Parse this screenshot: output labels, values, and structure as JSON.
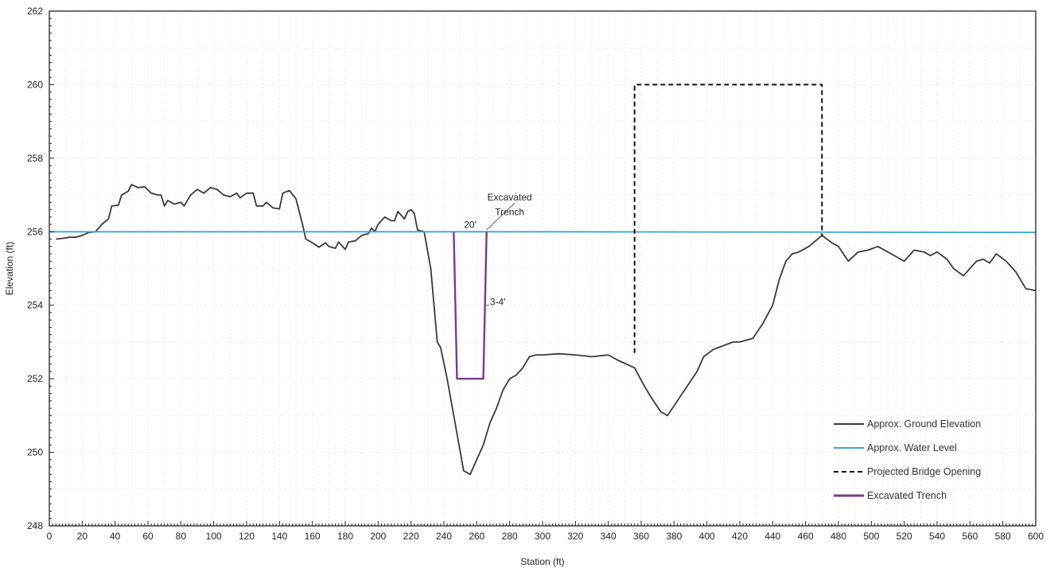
{
  "chart_data": {
    "type": "line",
    "title": "",
    "xlabel": "Station (ft)",
    "ylabel": "Elevation (ft)",
    "xlim": [
      0,
      600
    ],
    "ylim": [
      248,
      262
    ],
    "xticks": [
      0,
      20,
      40,
      60,
      80,
      100,
      120,
      140,
      160,
      180,
      200,
      220,
      240,
      260,
      280,
      300,
      320,
      340,
      360,
      380,
      400,
      420,
      440,
      460,
      480,
      500,
      520,
      540,
      560,
      580,
      600
    ],
    "yticks": [
      248,
      250,
      252,
      254,
      256,
      258,
      260,
      262
    ],
    "grid": true,
    "legend_position": "bottom-right",
    "series": [
      {
        "name": "Approx. Ground Elevation",
        "color": "#3a3a3a",
        "style": "solid",
        "points": [
          [
            4,
            255.8
          ],
          [
            8,
            255.82
          ],
          [
            12,
            255.85
          ],
          [
            16,
            255.85
          ],
          [
            20,
            255.9
          ],
          [
            24,
            255.98
          ],
          [
            28,
            256.0
          ],
          [
            32,
            256.2
          ],
          [
            36,
            256.35
          ],
          [
            38,
            256.7
          ],
          [
            42,
            256.72
          ],
          [
            44,
            257.0
          ],
          [
            48,
            257.1
          ],
          [
            50,
            257.28
          ],
          [
            54,
            257.2
          ],
          [
            58,
            257.22
          ],
          [
            62,
            257.05
          ],
          [
            66,
            257.0
          ],
          [
            68,
            257.0
          ],
          [
            70,
            256.7
          ],
          [
            72,
            256.85
          ],
          [
            76,
            256.75
          ],
          [
            80,
            256.8
          ],
          [
            82,
            256.7
          ],
          [
            86,
            257.0
          ],
          [
            90,
            257.15
          ],
          [
            94,
            257.05
          ],
          [
            98,
            257.2
          ],
          [
            102,
            257.15
          ],
          [
            106,
            257.0
          ],
          [
            110,
            256.95
          ],
          [
            114,
            257.05
          ],
          [
            116,
            256.92
          ],
          [
            120,
            257.05
          ],
          [
            124,
            257.05
          ],
          [
            126,
            256.7
          ],
          [
            130,
            256.7
          ],
          [
            132,
            256.8
          ],
          [
            136,
            256.65
          ],
          [
            140,
            256.62
          ],
          [
            142,
            257.05
          ],
          [
            146,
            257.12
          ],
          [
            150,
            256.9
          ],
          [
            154,
            256.2
          ],
          [
            156,
            255.8
          ],
          [
            160,
            255.7
          ],
          [
            164,
            255.58
          ],
          [
            168,
            255.7
          ],
          [
            170,
            255.6
          ],
          [
            174,
            255.55
          ],
          [
            176,
            255.72
          ],
          [
            180,
            255.52
          ],
          [
            182,
            255.72
          ],
          [
            186,
            255.75
          ],
          [
            190,
            255.9
          ],
          [
            194,
            255.95
          ],
          [
            196,
            256.1
          ],
          [
            198,
            256.0
          ],
          [
            200,
            256.2
          ],
          [
            204,
            256.4
          ],
          [
            208,
            256.3
          ],
          [
            210,
            256.3
          ],
          [
            212,
            256.55
          ],
          [
            216,
            256.35
          ],
          [
            218,
            256.55
          ],
          [
            220,
            256.6
          ],
          [
            222,
            256.5
          ],
          [
            224,
            256.05
          ],
          [
            228,
            256.0
          ],
          [
            232,
            255.0
          ],
          [
            236,
            253.0
          ],
          [
            238,
            252.85
          ],
          [
            242,
            252.0
          ],
          [
            246,
            251.0
          ],
          [
            250,
            250.0
          ],
          [
            252,
            249.5
          ],
          [
            256,
            249.4
          ],
          [
            260,
            249.8
          ],
          [
            264,
            250.2
          ],
          [
            268,
            250.8
          ],
          [
            272,
            251.2
          ],
          [
            276,
            251.7
          ],
          [
            280,
            252.0
          ],
          [
            284,
            252.1
          ],
          [
            288,
            252.3
          ],
          [
            292,
            252.6
          ],
          [
            296,
            252.65
          ],
          [
            300,
            252.65
          ],
          [
            310,
            252.68
          ],
          [
            320,
            252.65
          ],
          [
            330,
            252.6
          ],
          [
            340,
            252.65
          ],
          [
            346,
            252.5
          ],
          [
            356,
            252.3
          ],
          [
            362,
            251.8
          ],
          [
            366,
            251.5
          ],
          [
            372,
            251.1
          ],
          [
            376,
            251.0
          ],
          [
            382,
            251.4
          ],
          [
            388,
            251.8
          ],
          [
            394,
            252.2
          ],
          [
            398,
            252.6
          ],
          [
            404,
            252.8
          ],
          [
            410,
            252.9
          ],
          [
            416,
            253.0
          ],
          [
            420,
            253.0
          ],
          [
            428,
            253.1
          ],
          [
            434,
            253.5
          ],
          [
            440,
            254.0
          ],
          [
            444,
            254.7
          ],
          [
            448,
            255.2
          ],
          [
            452,
            255.4
          ],
          [
            456,
            255.45
          ],
          [
            462,
            255.6
          ],
          [
            470,
            255.9
          ],
          [
            476,
            255.7
          ],
          [
            480,
            255.6
          ],
          [
            486,
            255.2
          ],
          [
            492,
            255.45
          ],
          [
            498,
            255.5
          ],
          [
            504,
            255.6
          ],
          [
            510,
            255.45
          ],
          [
            516,
            255.3
          ],
          [
            520,
            255.2
          ],
          [
            526,
            255.5
          ],
          [
            532,
            255.45
          ],
          [
            536,
            255.35
          ],
          [
            540,
            255.45
          ],
          [
            546,
            255.25
          ],
          [
            550,
            255.0
          ],
          [
            556,
            254.8
          ],
          [
            560,
            255.0
          ],
          [
            564,
            255.2
          ],
          [
            568,
            255.25
          ],
          [
            572,
            255.15
          ],
          [
            576,
            255.4
          ],
          [
            582,
            255.2
          ],
          [
            588,
            254.9
          ],
          [
            594,
            254.45
          ],
          [
            600,
            254.4
          ]
        ]
      },
      {
        "name": "Approx. Water Level",
        "color": "#3aa6d6",
        "style": "solid",
        "points": [
          [
            0,
            256.0
          ],
          [
            300,
            256.0
          ],
          [
            600,
            255.98
          ]
        ]
      },
      {
        "name": "Projected Bridge Opening",
        "color": "#111111",
        "style": "dashed",
        "points": [
          [
            356,
            252.7
          ],
          [
            356,
            260.0
          ],
          [
            470,
            260.0
          ],
          [
            470,
            255.9
          ]
        ]
      },
      {
        "name": "Excavated Trench",
        "color": "#7a3a8e",
        "style": "solid",
        "points": [
          [
            246,
            256.0
          ],
          [
            248,
            252.0
          ],
          [
            264,
            252.0
          ],
          [
            266,
            256.0
          ]
        ]
      }
    ],
    "annotations": [
      {
        "text": "Excavated",
        "x": 280,
        "y": 256.85
      },
      {
        "text": "Trench",
        "x": 280,
        "y": 256.45
      },
      {
        "text": "20'",
        "x": 256,
        "y": 256.1
      },
      {
        "text": "3-4'",
        "x": 268,
        "y": 254.0
      }
    ]
  }
}
